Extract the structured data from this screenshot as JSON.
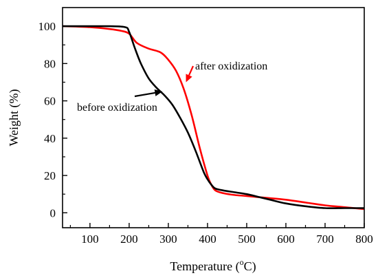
{
  "chart_data": {
    "type": "line",
    "xlabel": "Temperature (°C)",
    "xlabel_parts": {
      "before": "Temperature (",
      "superscript": "o",
      "after": "C)"
    },
    "ylabel": "Weight (%)",
    "xlim": [
      30,
      800
    ],
    "ylim": [
      -8,
      110
    ],
    "x_ticks": [
      100,
      200,
      300,
      400,
      500,
      600,
      700,
      800
    ],
    "y_ticks": [
      0,
      20,
      40,
      60,
      80,
      100
    ],
    "grid": false,
    "legend": "none",
    "series": [
      {
        "name": "before oxidization",
        "color": "#000000",
        "x": [
          30,
          100,
          150,
          190,
          200,
          215,
          230,
          250,
          270,
          290,
          310,
          330,
          350,
          370,
          390,
          400,
          410,
          420,
          440,
          470,
          500,
          530,
          560,
          600,
          650,
          700,
          750,
          800
        ],
        "y": [
          100,
          100,
          100,
          99.5,
          97,
          88,
          80,
          72,
          67,
          63,
          58,
          51,
          43,
          33,
          22,
          18,
          15,
          13,
          12,
          11,
          10,
          8.5,
          7,
          5,
          3.5,
          2.5,
          2.5,
          2.5
        ]
      },
      {
        "name": "after oxidization",
        "color": "#ff0000",
        "x": [
          30,
          100,
          150,
          180,
          200,
          220,
          250,
          280,
          300,
          320,
          340,
          360,
          380,
          400,
          410,
          420,
          440,
          470,
          500,
          550,
          600,
          650,
          700,
          750,
          800
        ],
        "y": [
          100,
          99.5,
          98.5,
          97.5,
          96,
          91,
          88,
          86,
          82,
          76,
          66,
          52,
          35,
          20,
          15,
          12,
          10.5,
          9.5,
          9,
          8,
          7,
          5.5,
          4,
          3,
          2
        ]
      }
    ],
    "annotations": [
      {
        "text": "after oxidization",
        "series": "after oxidization",
        "point": [
          345,
          70
        ]
      },
      {
        "text": "before oxidization",
        "series": "before oxidization",
        "point": [
          285,
          65
        ]
      }
    ]
  }
}
